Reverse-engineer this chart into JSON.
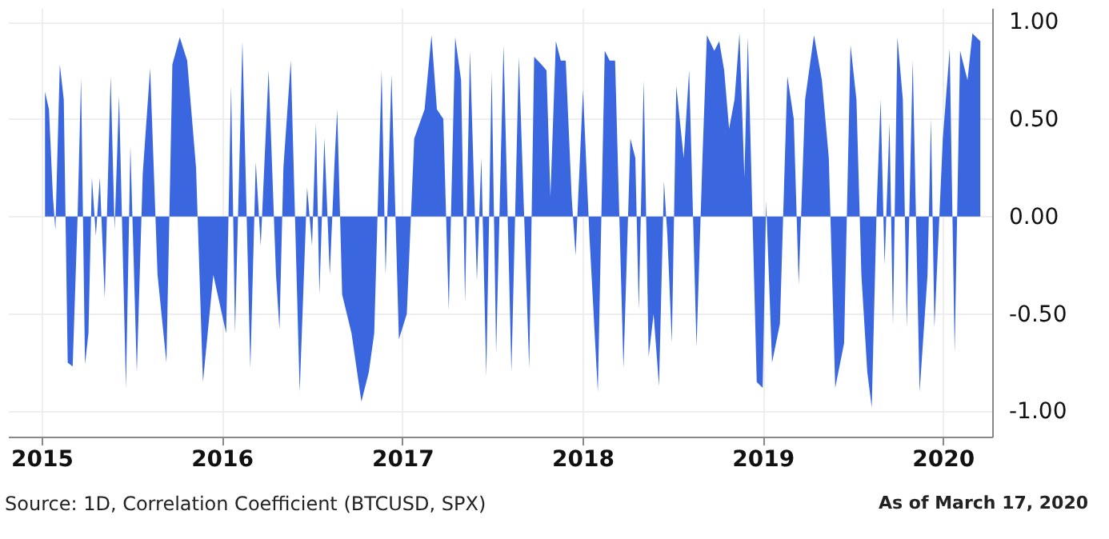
{
  "chart_data": {
    "type": "area",
    "color": "#3a67e0",
    "grid": true,
    "legend": false,
    "xlim": [
      "2014-10-25",
      "2020-04-10"
    ],
    "ylim": [
      -1.13,
      1.07
    ],
    "xticks": [
      {
        "value": "2015-01-01",
        "label": "2015"
      },
      {
        "value": "2016-01-01",
        "label": "2016"
      },
      {
        "value": "2017-01-01",
        "label": "2017"
      },
      {
        "value": "2018-01-01",
        "label": "2018"
      },
      {
        "value": "2019-01-01",
        "label": "2019"
      },
      {
        "value": "2020-01-01",
        "label": "2020"
      }
    ],
    "yticks": [
      {
        "value": -1,
        "label": "-1.00"
      },
      {
        "value": -0.5,
        "label": "-0.50"
      },
      {
        "value": 0,
        "label": "0.00"
      },
      {
        "value": 0.5,
        "label": "0.50"
      },
      {
        "value": 1,
        "label": "1.00"
      }
    ],
    "annotations": [
      "Source: 1D, Correlation Coefficient (BTCUSD, SPX)",
      "As of March 17, 2020"
    ],
    "x": [
      "2015-01-08",
      "2015-01-16",
      "2015-01-24",
      "2015-01-29",
      "2015-02-07",
      "2015-02-15",
      "2015-02-23",
      "2015-03-05",
      "2015-03-15",
      "2015-03-22",
      "2015-03-30",
      "2015-04-06",
      "2015-04-13",
      "2015-04-21",
      "2015-04-29",
      "2015-05-09",
      "2015-05-21",
      "2015-05-29",
      "2015-06-07",
      "2015-06-21",
      "2015-06-30",
      "2015-07-13",
      "2015-07-25",
      "2015-08-09",
      "2015-08-24",
      "2015-09-11",
      "2015-09-23",
      "2015-10-08",
      "2015-10-23",
      "2015-11-10",
      "2015-11-24",
      "2015-12-15",
      "2016-01-10",
      "2016-01-20",
      "2016-01-28",
      "2016-02-12",
      "2016-02-28",
      "2016-03-10",
      "2016-03-20",
      "2016-04-05",
      "2016-04-20",
      "2016-04-27",
      "2016-05-05",
      "2016-05-20",
      "2016-06-07",
      "2016-06-22",
      "2016-07-02",
      "2016-07-10",
      "2016-07-17",
      "2016-07-27",
      "2016-08-07",
      "2016-08-17",
      "2016-08-22",
      "2016-09-01",
      "2016-09-20",
      "2016-10-10",
      "2016-10-25",
      "2016-11-05",
      "2016-11-20",
      "2016-11-28",
      "2016-12-10",
      "2016-12-25",
      "2017-01-10",
      "2017-01-25",
      "2017-02-15",
      "2017-03-01",
      "2017-03-12",
      "2017-03-25",
      "2017-04-05",
      "2017-04-18",
      "2017-04-30",
      "2017-05-08",
      "2017-05-18",
      "2017-06-01",
      "2017-06-10",
      "2017-06-20",
      "2017-07-01",
      "2017-07-10",
      "2017-07-25",
      "2017-08-10",
      "2017-08-25",
      "2017-09-15",
      "2017-09-25",
      "2017-10-10",
      "2017-10-20",
      "2017-10-28",
      "2017-11-08",
      "2017-11-18",
      "2017-11-28",
      "2017-12-10",
      "2017-12-18",
      "2018-01-02",
      "2018-01-15",
      "2018-02-01",
      "2018-02-15",
      "2018-02-25",
      "2018-03-08",
      "2018-03-25",
      "2018-04-08",
      "2018-04-18",
      "2018-04-25",
      "2018-05-05",
      "2018-05-15",
      "2018-05-25",
      "2018-06-05",
      "2018-06-15",
      "2018-06-22",
      "2018-07-01",
      "2018-07-10",
      "2018-07-25",
      "2018-08-05",
      "2018-08-20",
      "2018-09-01",
      "2018-09-10",
      "2018-09-25",
      "2018-10-05",
      "2018-10-15",
      "2018-10-25",
      "2018-11-05",
      "2018-11-15",
      "2018-11-25",
      "2018-12-02",
      "2018-12-20",
      "2019-01-01",
      "2019-01-08",
      "2019-01-20",
      "2019-02-05",
      "2019-02-20",
      "2019-03-05",
      "2019-03-15",
      "2019-03-28",
      "2019-04-15",
      "2019-05-01",
      "2019-05-15",
      "2019-05-28",
      "2019-06-15",
      "2019-06-28",
      "2019-07-10",
      "2019-07-20",
      "2019-08-01",
      "2019-08-10",
      "2019-08-20",
      "2019-08-28",
      "2019-09-05",
      "2019-09-15",
      "2019-09-22",
      "2019-10-01",
      "2019-10-12",
      "2019-10-20",
      "2019-11-01",
      "2019-11-15",
      "2019-12-01",
      "2019-12-08",
      "2019-12-15",
      "2020-01-01",
      "2020-01-15",
      "2020-01-25",
      "2020-02-05",
      "2020-02-20",
      "2020-03-01",
      "2020-03-17"
    ],
    "values": [
      0.64,
      0.55,
      0.1,
      -0.07,
      0.78,
      0.6,
      -0.75,
      -0.77,
      0.0,
      0.71,
      -0.76,
      -0.6,
      0.2,
      -0.1,
      0.2,
      -0.42,
      0.72,
      -0.07,
      0.62,
      -0.88,
      0.36,
      -0.8,
      0.22,
      0.76,
      -0.3,
      -0.75,
      0.78,
      0.92,
      0.8,
      0.25,
      -0.85,
      -0.3,
      -0.6,
      0.67,
      -0.6,
      0.9,
      -0.78,
      0.28,
      -0.15,
      0.75,
      -0.3,
      -0.58,
      0.25,
      0.8,
      -0.9,
      0.15,
      -0.15,
      0.48,
      -0.4,
      0.4,
      -0.3,
      0.3,
      0.55,
      -0.4,
      -0.6,
      -0.95,
      -0.8,
      -0.6,
      0.75,
      -0.3,
      0.73,
      -0.63,
      -0.5,
      0.4,
      0.55,
      0.93,
      0.55,
      0.5,
      -0.48,
      0.92,
      0.7,
      -0.44,
      0.85,
      -0.33,
      0.3,
      -0.82,
      0.74,
      -0.7,
      0.88,
      -0.8,
      0.82,
      -0.78,
      0.82,
      0.78,
      0.75,
      0.1,
      0.9,
      0.8,
      0.8,
      0.1,
      -0.2,
      0.65,
      -0.1,
      -0.9,
      0.85,
      0.8,
      0.8,
      -0.78,
      0.4,
      0.3,
      -0.48,
      0.7,
      -0.72,
      -0.5,
      -0.87,
      0.18,
      -0.1,
      -0.65,
      0.67,
      0.3,
      0.75,
      -0.67,
      0.3,
      0.93,
      0.85,
      0.9,
      0.75,
      0.45,
      0.6,
      0.94,
      0.2,
      0.92,
      -0.85,
      -0.88,
      0.08,
      -0.75,
      -0.55,
      0.72,
      0.5,
      -0.35,
      0.6,
      0.93,
      0.7,
      0.3,
      -0.88,
      -0.65,
      0.88,
      0.6,
      -0.3,
      -0.8,
      -0.98,
      0.05,
      0.6,
      -0.25,
      0.48,
      -0.56,
      0.92,
      0.6,
      -0.57,
      0.8,
      -0.9,
      -0.3,
      0.5,
      -0.57,
      0.4,
      0.86,
      -0.7,
      0.85,
      0.7,
      0.94,
      0.9
    ]
  }
}
